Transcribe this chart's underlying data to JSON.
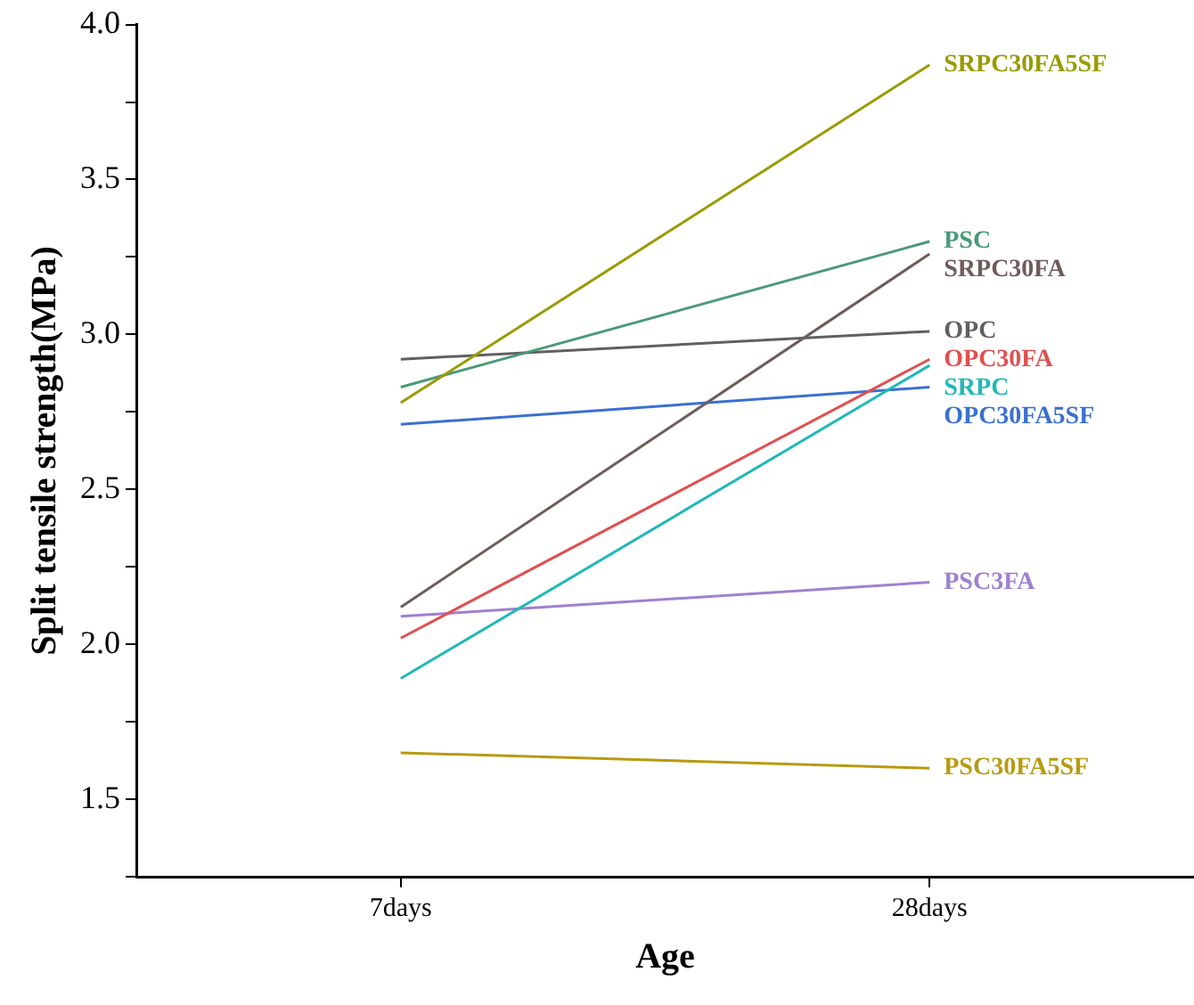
{
  "chart_data": {
    "type": "line",
    "xlabel": "Age",
    "ylabel": "Split tensile strength(MPa)",
    "categories": [
      "7days",
      "28days"
    ],
    "ylim": [
      1.25,
      4.0
    ],
    "yticks": [
      {
        "value": 1.25,
        "label": null
      },
      1.5,
      {
        "value": 1.75,
        "label": null
      },
      {
        "value": 2,
        "label": "2.0"
      },
      {
        "value": 2.25,
        "label": null
      },
      2.5,
      {
        "value": 2.75,
        "label": null
      },
      {
        "value": 3,
        "label": "3.0"
      },
      {
        "value": 3.25,
        "label": null
      },
      3.5,
      {
        "value": 3.75,
        "label": null
      },
      {
        "value": 4,
        "label": "4.0"
      }
    ],
    "grid": false,
    "legend": false,
    "marker": "none",
    "line_style": "solid",
    "series": [
      {
        "name": "SRPC30FA5SF",
        "color": "#9a9a00",
        "values": [
          2.78,
          3.87
        ]
      },
      {
        "name": "PSC",
        "color": "#4a9a78",
        "values": [
          2.83,
          3.3
        ]
      },
      {
        "name": "SRPC30FA",
        "color": "#705a5a",
        "values": [
          2.12,
          3.26
        ]
      },
      {
        "name": "OPC",
        "color": "#606060",
        "values": [
          2.92,
          3.01
        ]
      },
      {
        "name": "OPC30FA",
        "color": "#e05050",
        "values": [
          2.02,
          2.92
        ]
      },
      {
        "name": "SRPC",
        "color": "#20b8b8",
        "values": [
          1.89,
          2.9
        ]
      },
      {
        "name": "OPC30FA5SF",
        "color": "#3a70d0",
        "values": [
          2.71,
          2.83
        ]
      },
      {
        "name": "PSC3FA",
        "color": "#a080d0",
        "values": [
          2.09,
          2.2
        ]
      },
      {
        "name": "PSC30FA5SF",
        "color": "#b89a10",
        "values": [
          1.65,
          1.6
        ]
      }
    ]
  }
}
